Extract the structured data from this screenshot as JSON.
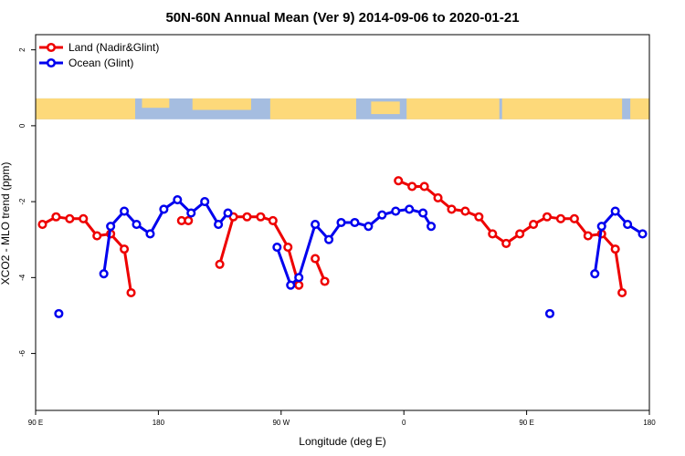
{
  "chart_data": {
    "type": "line",
    "title": "50N-60N Annual Mean (Ver 9)   2014-09-06 to 2020-01-21",
    "xlabel": "Longitude (deg E)",
    "ylabel": "XCO2 - MLO trend (ppm)",
    "xlim": [
      90,
      540
    ],
    "ylim": [
      -7.5,
      2.4
    ],
    "x_ticks": [
      {
        "value": 90,
        "label": "90 E"
      },
      {
        "value": 180,
        "label": "180"
      },
      {
        "value": 270,
        "label": "90 W"
      },
      {
        "value": 360,
        "label": "0"
      },
      {
        "value": 450,
        "label": "90 E"
      },
      {
        "value": 540,
        "label": "180"
      }
    ],
    "y_ticks": [
      {
        "value": 2,
        "label": "2"
      },
      {
        "value": 0,
        "label": "0"
      },
      {
        "value": -2,
        "label": "-2"
      },
      {
        "value": -4,
        "label": "-4"
      },
      {
        "value": -6,
        "label": "-6"
      }
    ],
    "legend_position": "top-left",
    "map_strip": {
      "y_top": 0.72,
      "y_bottom": 0.17,
      "ocean_color": "#a5bde0",
      "land_color": "#fdd97a"
    },
    "series": [
      {
        "name": "Land (Nadir&Glint)",
        "color": "#ee0000",
        "segments": [
          [
            [
              95,
              -2.6
            ],
            [
              105,
              -2.4
            ],
            [
              115,
              -2.45
            ],
            [
              125,
              -2.45
            ],
            [
              135,
              -2.9
            ],
            [
              145,
              -2.85
            ],
            [
              155,
              -3.25
            ],
            [
              160,
              -4.4
            ]
          ],
          [
            [
              197,
              -2.5
            ],
            [
              202,
              -2.5
            ]
          ],
          [
            [
              225,
              -3.65
            ],
            [
              235,
              -2.4
            ],
            [
              245,
              -2.4
            ],
            [
              255,
              -2.4
            ],
            [
              264,
              -2.5
            ],
            [
              275,
              -3.2
            ],
            [
              283,
              -4.2
            ]
          ],
          [
            [
              295,
              -3.5
            ],
            [
              302,
              -4.1
            ]
          ],
          [
            [
              356,
              -1.45
            ],
            [
              366,
              -1.6
            ],
            [
              375,
              -1.6
            ],
            [
              385,
              -1.9
            ],
            [
              395,
              -2.2
            ],
            [
              405,
              -2.25
            ],
            [
              415,
              -2.4
            ],
            [
              425,
              -2.85
            ],
            [
              435,
              -3.1
            ],
            [
              445,
              -2.85
            ],
            [
              455,
              -2.6
            ],
            [
              465,
              -2.4
            ],
            [
              475,
              -2.45
            ],
            [
              485,
              -2.45
            ],
            [
              495,
              -2.9
            ],
            [
              505,
              -2.85
            ],
            [
              515,
              -3.25
            ],
            [
              520,
              -4.4
            ]
          ]
        ]
      },
      {
        "name": "Ocean (Glint)",
        "color": "#0000ee",
        "segments": [
          [
            [
              107,
              -4.95
            ]
          ],
          [
            [
              140,
              -3.9
            ],
            [
              145,
              -2.65
            ],
            [
              155,
              -2.25
            ],
            [
              164,
              -2.6
            ],
            [
              174,
              -2.85
            ],
            [
              184,
              -2.2
            ],
            [
              194,
              -1.95
            ],
            [
              204,
              -2.3
            ],
            [
              214,
              -2.0
            ],
            [
              224,
              -2.6
            ],
            [
              231,
              -2.3
            ]
          ],
          [
            [
              267,
              -3.2
            ],
            [
              277,
              -4.2
            ],
            [
              283,
              -4.0
            ],
            [
              295,
              -2.6
            ],
            [
              305,
              -3.0
            ],
            [
              314,
              -2.55
            ],
            [
              324,
              -2.55
            ],
            [
              334,
              -2.65
            ],
            [
              344,
              -2.35
            ],
            [
              354,
              -2.25
            ],
            [
              364,
              -2.2
            ],
            [
              374,
              -2.3
            ],
            [
              380,
              -2.65
            ]
          ],
          [
            [
              467,
              -4.95
            ]
          ],
          [
            [
              500,
              -3.9
            ],
            [
              505,
              -2.65
            ],
            [
              515,
              -2.25
            ],
            [
              524,
              -2.6
            ],
            [
              535,
              -2.85
            ]
          ]
        ]
      }
    ]
  }
}
